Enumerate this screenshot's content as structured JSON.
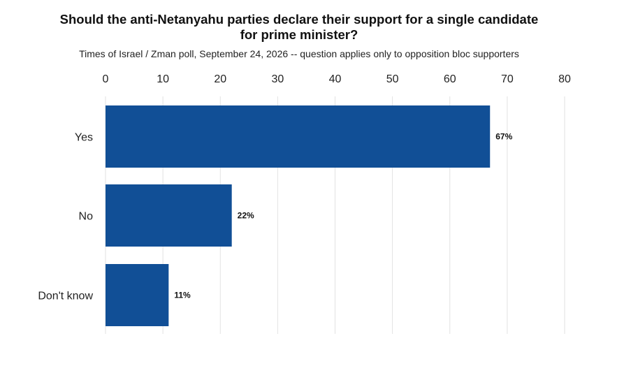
{
  "chart_data": {
    "type": "bar",
    "orientation": "horizontal",
    "title_lines": [
      "Should the anti-Netanyahu parties declare their support for a single candidate",
      "for prime minister?"
    ],
    "subtitle": "Times of Israel / Zman poll, September 24, 2026 -- question applies only to opposition bloc supporters",
    "categories": [
      "Yes",
      "No",
      "Don't know"
    ],
    "values": [
      67,
      22,
      11
    ],
    "value_labels": [
      "67%",
      "22%",
      "11%"
    ],
    "xlim": [
      0,
      80
    ],
    "x_ticks": [
      0,
      10,
      20,
      30,
      40,
      50,
      60,
      70,
      80
    ],
    "x_axis_position": "top",
    "grid": true,
    "bar_color": "#114f96",
    "grid_color": "#e2e2e2"
  }
}
